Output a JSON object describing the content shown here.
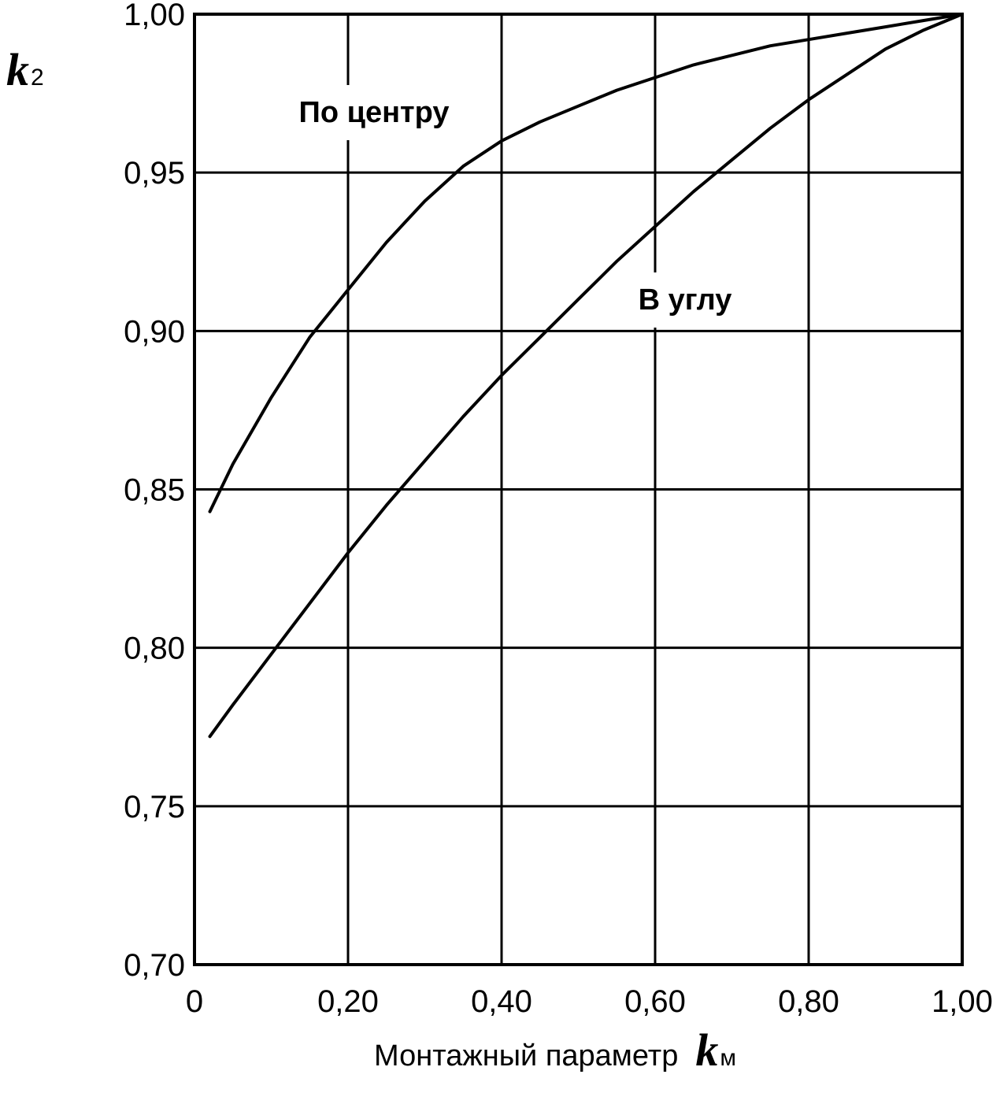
{
  "chart_data": {
    "type": "line",
    "xlabel": "Монтажный параметр",
    "xlabel_symbol": "k",
    "xlabel_subscript": "м",
    "ylabel_symbol": "k",
    "ylabel_subscript": "2",
    "xlim": [
      0,
      1.0
    ],
    "ylim": [
      0.7,
      1.0
    ],
    "grid": true,
    "legend": "none",
    "x_ticks": [
      0,
      0.2,
      0.4,
      0.6,
      0.8,
      1.0
    ],
    "x_tick_labels": [
      "0",
      "0,20",
      "0,40",
      "0,60",
      "0,80",
      "1,00"
    ],
    "y_ticks": [
      0.7,
      0.75,
      0.8,
      0.85,
      0.9,
      0.95,
      1.0
    ],
    "y_tick_labels": [
      "0,70",
      "0,75",
      "0,80",
      "0,85",
      "0,90",
      "0,95",
      "1,00"
    ],
    "line_color": "#000000",
    "series": [
      {
        "name": "По центру",
        "x": [
          0.02,
          0.05,
          0.1,
          0.15,
          0.2,
          0.25,
          0.3,
          0.35,
          0.4,
          0.45,
          0.5,
          0.55,
          0.6,
          0.65,
          0.7,
          0.75,
          0.8,
          0.85,
          0.9,
          0.95,
          1.0
        ],
        "values": [
          0.843,
          0.858,
          0.879,
          0.898,
          0.913,
          0.928,
          0.941,
          0.952,
          0.96,
          0.966,
          0.971,
          0.976,
          0.98,
          0.984,
          0.987,
          0.99,
          0.992,
          0.994,
          0.996,
          0.998,
          1.0
        ]
      },
      {
        "name": "В углу",
        "x": [
          0.02,
          0.05,
          0.1,
          0.15,
          0.2,
          0.25,
          0.3,
          0.35,
          0.4,
          0.45,
          0.5,
          0.55,
          0.6,
          0.65,
          0.7,
          0.75,
          0.8,
          0.85,
          0.9,
          0.95,
          1.0
        ],
        "values": [
          0.772,
          0.782,
          0.798,
          0.814,
          0.83,
          0.845,
          0.859,
          0.873,
          0.886,
          0.898,
          0.91,
          0.922,
          0.933,
          0.944,
          0.954,
          0.964,
          0.973,
          0.981,
          0.989,
          0.995,
          1.0
        ]
      }
    ]
  }
}
